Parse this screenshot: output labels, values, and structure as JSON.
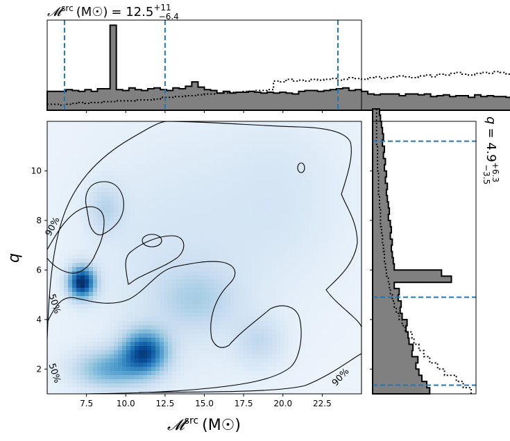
{
  "chart_data": [
    {
      "panel": "top-marginal",
      "type": "histogram",
      "title": "𝓜src (M☉) = 12.5+11−6.4",
      "title_parts": {
        "main": "𝓜",
        "sup": "src",
        "unit": "(M☉)",
        "eq": "= 12.5",
        "plus": "+11",
        "minus": "−6.4"
      },
      "xlim": [
        5.0,
        25.0
      ],
      "bin_edges_start": 5.0,
      "bin_width": 0.4,
      "posterior_density": [
        0.22,
        0.22,
        0.22,
        0.24,
        0.23,
        0.22,
        0.24,
        0.22,
        0.25,
        0.25,
        0.99,
        0.24,
        0.23,
        0.26,
        0.24,
        0.23,
        0.25,
        0.26,
        0.24,
        0.23,
        0.26,
        0.25,
        0.28,
        0.33,
        0.27,
        0.24,
        0.23,
        0.2,
        0.22,
        0.2,
        0.21,
        0.21,
        0.22,
        0.21,
        0.2,
        0.21,
        0.2,
        0.21,
        0.2,
        0.19,
        0.22,
        0.23,
        0.23,
        0.22,
        0.23,
        0.24,
        0.25,
        0.26,
        0.23,
        0.24,
        0.22,
        0.19,
        0.18,
        0.19,
        0.19,
        0.19,
        0.17,
        0.19,
        0.19,
        0.18,
        0.19,
        0.16,
        0.17,
        0.18,
        0.16,
        0.17,
        0.17,
        0.15,
        0.18,
        0.16,
        0.17,
        0.16,
        0.16,
        0.15,
        0.16,
        0.17,
        0.16,
        0.15,
        0.19,
        0.21
      ],
      "prior_density": [
        0.07,
        0.07,
        0.06,
        0.07,
        0.08,
        0.09,
        0.08,
        0.09,
        0.09,
        0.1,
        0.1,
        0.11,
        0.11,
        0.11,
        0.12,
        0.12,
        0.12,
        0.13,
        0.15,
        0.15,
        0.16,
        0.16,
        0.17,
        0.17,
        0.18,
        0.19,
        0.19,
        0.2,
        0.2,
        0.21,
        0.21,
        0.22,
        0.22,
        0.23,
        0.23,
        0.24,
        0.34,
        0.33,
        0.36,
        0.34,
        0.35,
        0.34,
        0.36,
        0.35,
        0.36,
        0.37,
        0.35,
        0.36,
        0.38,
        0.37,
        0.36,
        0.38,
        0.39,
        0.37,
        0.38,
        0.39,
        0.4,
        0.39,
        0.38,
        0.4,
        0.41,
        0.39,
        0.42,
        0.41,
        0.43,
        0.44,
        0.42,
        0.41,
        0.43,
        0.44,
        0.43,
        0.45,
        0.44,
        0.42,
        0.45,
        0.43,
        0.44,
        0.43,
        0.44,
        0.42
      ],
      "ylim": [
        0,
        1.05
      ],
      "quantile_lines": [
        6.1,
        12.5,
        23.5
      ],
      "line_color": "#1f77b4"
    },
    {
      "panel": "joint",
      "type": "heatmap",
      "xlabel_parts": {
        "main": "𝓜",
        "sup": "src",
        "unit": "(M☉)"
      },
      "ylabel": "q",
      "xlim": [
        5.0,
        25.0
      ],
      "ylim": [
        1.0,
        12.0
      ],
      "xticks": [
        "7.5",
        "10.0",
        "12.5",
        "15.0",
        "17.5",
        "20.0",
        "22.5"
      ],
      "xtick_values": [
        7.5,
        10.0,
        12.5,
        15.0,
        17.5,
        20.0,
        22.5
      ],
      "yticks": [
        "2",
        "4",
        "6",
        "8",
        "10"
      ],
      "ytick_values": [
        2,
        4,
        6,
        8,
        10
      ],
      "colormap": "Blues",
      "density_peaks": [
        {
          "x": 7.2,
          "y": 5.5,
          "weight": 1.0,
          "sx": 0.6,
          "sy": 0.45
        },
        {
          "x": 11.2,
          "y": 2.7,
          "weight": 0.8,
          "sx": 1.0,
          "sy": 0.6
        },
        {
          "x": 9.0,
          "y": 2.0,
          "weight": 0.45,
          "sx": 1.6,
          "sy": 0.55
        },
        {
          "x": 8.7,
          "y": 8.5,
          "weight": 0.2,
          "sx": 0.8,
          "sy": 0.7
        },
        {
          "x": 14.5,
          "y": 4.8,
          "weight": 0.2,
          "sx": 1.8,
          "sy": 0.9
        },
        {
          "x": 18.5,
          "y": 3.1,
          "weight": 0.18,
          "sx": 1.1,
          "sy": 0.7
        },
        {
          "x": 13.0,
          "y": 6.5,
          "weight": 0.12,
          "sx": 4.0,
          "sy": 3.5
        },
        {
          "x": 20.0,
          "y": 9.0,
          "weight": 0.1,
          "sx": 3.0,
          "sy": 2.5
        }
      ],
      "contour_labels": [
        {
          "text": "90%",
          "x": 5.5,
          "y": 7.7,
          "angle": -62
        },
        {
          "text": "50%",
          "x": 5.3,
          "y": 4.6,
          "angle": 72
        },
        {
          "text": "50%",
          "x": 5.3,
          "y": 1.8,
          "angle": 72
        },
        {
          "text": "90%",
          "x": 23.8,
          "y": 1.6,
          "angle": -48
        }
      ]
    },
    {
      "panel": "right-marginal",
      "type": "histogram",
      "orientation": "horizontal",
      "title_parts": {
        "var": "q",
        "eq": "= 4.9",
        "plus": "+6.3",
        "minus": "−3.5"
      },
      "ylim": [
        1.0,
        12.0
      ],
      "bin_edges_start": 1.0,
      "bin_width": 0.25,
      "posterior_density": [
        0.58,
        0.55,
        0.5,
        0.47,
        0.44,
        0.46,
        0.4,
        0.41,
        0.37,
        0.36,
        0.34,
        0.35,
        0.3,
        0.28,
        0.29,
        0.26,
        0.27,
        0.22,
        0.8,
        0.7,
        0.22,
        0.21,
        0.2,
        0.19,
        0.2,
        0.18,
        0.19,
        0.18,
        0.16,
        0.17,
        0.16,
        0.15,
        0.14,
        0.15,
        0.13,
        0.14,
        0.12,
        0.13,
        0.11,
        0.12,
        0.1,
        0.11,
        0.1,
        0.09,
        0.08,
        0.07
      ],
      "prior_density": [
        1.0,
        0.92,
        0.85,
        0.73,
        0.66,
        0.58,
        0.52,
        0.47,
        0.42,
        0.4,
        0.33,
        0.3,
        0.27,
        0.24,
        0.22,
        0.2,
        0.18,
        0.17,
        0.16,
        0.14,
        0.13,
        0.12,
        0.12,
        0.11,
        0.1,
        0.1,
        0.09,
        0.08,
        0.08,
        0.08,
        0.07,
        0.07,
        0.06,
        0.06,
        0.06,
        0.06,
        0.05,
        0.05,
        0.05,
        0.05,
        0.04,
        0.04,
        0.04,
        0.04,
        0.04,
        0.04
      ],
      "xlim": [
        0,
        1.05
      ],
      "quantile_lines": [
        1.35,
        4.9,
        11.2
      ],
      "line_color": "#1f77b4"
    }
  ]
}
